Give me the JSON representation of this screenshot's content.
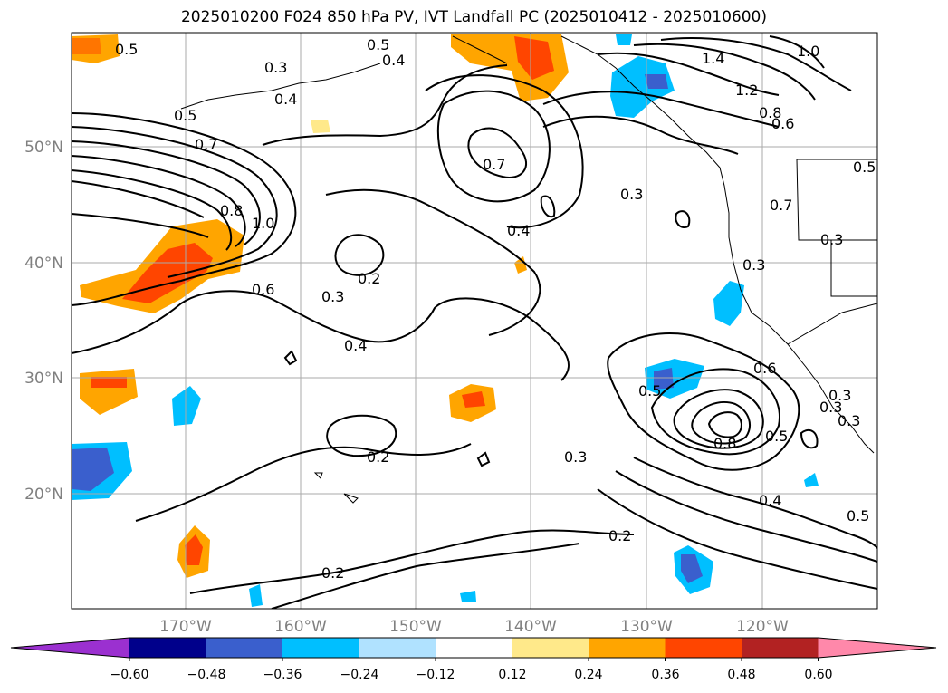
{
  "title": "2025010200 F024 850 hPa PV, IVT Landfall PC (2025010412 - 2025010600)",
  "map": {
    "lat_ticks": [
      "50°N",
      "40°N",
      "30°N",
      "20°N"
    ],
    "lon_ticks": [
      "170°W",
      "160°W",
      "150°W",
      "140°W",
      "130°W",
      "120°W"
    ],
    "contour_labels": [
      "0.5",
      "0.3",
      "0.5",
      "0.4",
      "0.4",
      "1.4",
      "1.2",
      "1.0",
      "0.8",
      "0.6",
      "0.5",
      "0.7",
      "0.7",
      "0.8",
      "1.0",
      "0.6",
      "0.3",
      "0.2",
      "0.3",
      "0.4",
      "0.4",
      "0.3",
      "0.3",
      "0.5",
      "0.6",
      "0.8",
      "0.5",
      "0.3",
      "0.2",
      "0.3",
      "0.4",
      "0.5",
      "0.2",
      "0.2",
      "0.7",
      "0.3",
      "0.5",
      "0.3"
    ]
  },
  "colorbar": {
    "tick_labels": [
      "−0.60",
      "−0.48",
      "−0.36",
      "−0.24",
      "−0.12",
      "0.12",
      "0.24",
      "0.36",
      "0.48",
      "0.60"
    ],
    "colors": [
      "#9b30d0",
      "#00008b",
      "#3a5fcd",
      "#00bfff",
      "#b0e2ff",
      "#ffffff",
      "#ffe98a",
      "#ffa500",
      "#ff4500",
      "#b22222",
      "#ff88aa"
    ]
  }
}
